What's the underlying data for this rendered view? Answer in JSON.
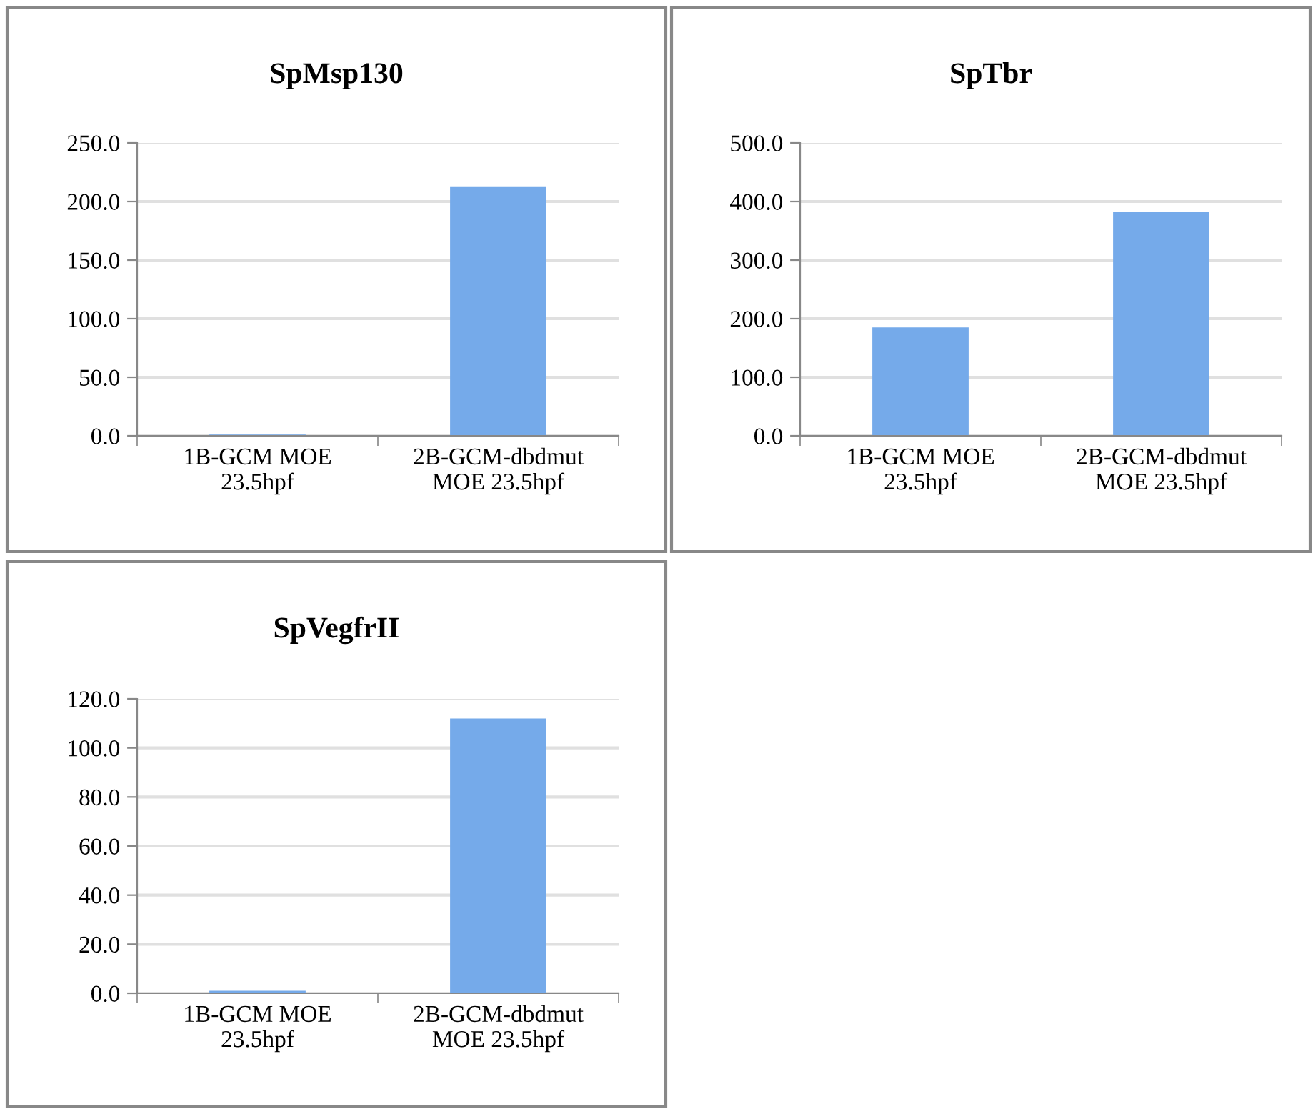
{
  "chart_data": [
    {
      "type": "bar",
      "title": "SpMsp130",
      "categories": [
        "1B-GCM MOE\n23.5hpf",
        "2B-GCM-dbdmut\nMOE 23.5hpf"
      ],
      "values": [
        1,
        213
      ],
      "color": "#75aaea",
      "ylim": [
        0,
        250
      ],
      "yticks": [
        {
          "value": 0,
          "label": "0.0"
        },
        {
          "value": 50,
          "label": "50.0"
        },
        {
          "value": 100,
          "label": "100.0"
        },
        {
          "value": 150,
          "label": "150.0"
        },
        {
          "value": 200,
          "label": "200.0"
        },
        {
          "value": 250,
          "label": "250.0"
        }
      ],
      "grid": "y"
    },
    {
      "type": "bar",
      "title": "SpTbr",
      "categories": [
        "1B-GCM MOE\n23.5hpf",
        "2B-GCM-dbdmut\nMOE 23.5hpf"
      ],
      "values": [
        185,
        382
      ],
      "color": "#75aaea",
      "ylim": [
        0,
        500
      ],
      "yticks": [
        {
          "value": 0,
          "label": "0.0"
        },
        {
          "value": 100,
          "label": "100.0"
        },
        {
          "value": 200,
          "label": "200.0"
        },
        {
          "value": 300,
          "label": "300.0"
        },
        {
          "value": 400,
          "label": "400.0"
        },
        {
          "value": 500,
          "label": "500.0"
        }
      ],
      "grid": "y"
    },
    {
      "type": "bar",
      "title": "SpVegfrII",
      "categories": [
        "1B-GCM MOE\n23.5hpf",
        "2B-GCM-dbdmut\nMOE 23.5hpf"
      ],
      "values": [
        1,
        112
      ],
      "color": "#75aaea",
      "ylim": [
        0,
        120
      ],
      "yticks": [
        {
          "value": 0,
          "label": "0.0"
        },
        {
          "value": 20,
          "label": "20.0"
        },
        {
          "value": 40,
          "label": "40.0"
        },
        {
          "value": 60,
          "label": "60.0"
        },
        {
          "value": 80,
          "label": "80.0"
        },
        {
          "value": 100,
          "label": "100.0"
        },
        {
          "value": 120,
          "label": "120.0"
        }
      ],
      "grid": "y"
    }
  ]
}
